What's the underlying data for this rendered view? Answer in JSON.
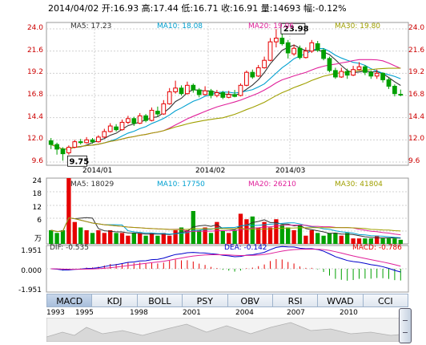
{
  "header": {
    "date": "2014/04/02",
    "open_label": "开:",
    "open": "16.93",
    "high_label": "高:",
    "high": "17.44",
    "low_label": "低:",
    "low": "16.71",
    "close_label": "收:",
    "close": "16.91",
    "volume_label": "量:",
    "volume": "14693",
    "change_label": "幅:",
    "change": "-0.12%"
  },
  "price_panel": {
    "ma5": "MA5: 17.23",
    "ma10": "MA10: 18.08",
    "ma20": "MA20: 19.06",
    "ma30": "MA30: 19.80",
    "max_label": "23.98",
    "min_label": "9.75",
    "y_ticks": [
      "24.0",
      "21.6",
      "19.2",
      "16.8",
      "14.4",
      "12.0",
      "9.6"
    ],
    "x_ticks": [
      "2014/01",
      "2014/02",
      "2014/03"
    ]
  },
  "volume_panel": {
    "ma5": "MA5: 18029",
    "ma10": "MA10: 17750",
    "ma20": "MA20: 26210",
    "ma30": "MA30: 41804",
    "y_ticks": [
      "24",
      "18",
      "12",
      "6"
    ],
    "unit": "万"
  },
  "macd_panel": {
    "dif": "DIF: -0.535",
    "dea": "DEA: -0.142",
    "macd": "MACD: -0.786",
    "y_ticks": [
      "1.951",
      "0.000",
      "-1.951"
    ]
  },
  "tabs": [
    "MACD",
    "KDJ",
    "BOLL",
    "PSY",
    "OBV",
    "RSI",
    "WVAD",
    "CCI"
  ],
  "active_tab": "MACD",
  "years": [
    "1993",
    "1995",
    "1998",
    "2001",
    "2004",
    "2007",
    "2010"
  ],
  "colors": {
    "up": "#e60000",
    "down": "#00a000",
    "ma5": "#333333",
    "ma10": "#00a0d0",
    "ma20": "#e0209a",
    "ma30": "#a0a000",
    "grid": "#d0d0d0",
    "tab_border": "#9eb3cc"
  },
  "icons": {
    "scroll_handle": "scrollbar-handle-icon"
  },
  "chart_data": [
    {
      "type": "candlestick",
      "title": "",
      "x": [
        "2014/01",
        "2014/02",
        "2014/03"
      ],
      "ylim": [
        9.6,
        24.0
      ],
      "series": [
        {
          "name": "MA5",
          "value": 17.23
        },
        {
          "name": "MA10",
          "value": 18.08
        },
        {
          "name": "MA20",
          "value": 19.06
        },
        {
          "name": "MA30",
          "value": 19.8
        }
      ],
      "candles": [
        [
          11.9,
          11.5,
          12.2,
          11.0
        ],
        [
          11.5,
          11.0,
          11.7,
          10.4
        ],
        [
          11.0,
          10.5,
          11.2,
          9.75
        ],
        [
          10.6,
          11.2,
          11.4,
          10.4
        ],
        [
          11.2,
          11.8,
          12.0,
          11.1
        ],
        [
          11.8,
          11.7,
          12.1,
          11.5
        ],
        [
          11.7,
          12.0,
          12.3,
          11.6
        ],
        [
          12.0,
          11.8,
          12.2,
          11.6
        ],
        [
          11.8,
          12.3,
          12.5,
          11.7
        ],
        [
          12.3,
          12.9,
          13.2,
          12.2
        ],
        [
          12.9,
          13.5,
          13.8,
          12.8
        ],
        [
          13.4,
          13.1,
          13.7,
          12.9
        ],
        [
          13.1,
          13.9,
          14.2,
          13.0
        ],
        [
          13.9,
          14.3,
          14.6,
          13.7
        ],
        [
          14.3,
          13.8,
          14.5,
          13.5
        ],
        [
          13.8,
          14.6,
          14.9,
          13.7
        ],
        [
          14.6,
          14.1,
          14.8,
          13.9
        ],
        [
          14.1,
          15.2,
          15.5,
          14.0
        ],
        [
          15.1,
          14.8,
          15.6,
          14.5
        ],
        [
          14.8,
          15.9,
          16.3,
          14.7
        ],
        [
          15.9,
          17.2,
          17.6,
          15.8
        ],
        [
          17.2,
          17.6,
          18.4,
          17.0
        ],
        [
          17.6,
          17.0,
          17.9,
          16.8
        ],
        [
          17.0,
          17.9,
          18.3,
          16.9
        ],
        [
          17.9,
          17.4,
          18.1,
          17.1
        ],
        [
          17.4,
          16.9,
          17.6,
          16.6
        ],
        [
          16.9,
          17.3,
          17.8,
          16.8
        ],
        [
          17.3,
          16.8,
          17.5,
          16.5
        ],
        [
          16.8,
          17.1,
          17.4,
          16.6
        ],
        [
          17.1,
          16.6,
          17.3,
          16.4
        ],
        [
          16.6,
          16.9,
          17.3,
          16.5
        ],
        [
          16.9,
          16.7,
          17.4,
          16.6
        ],
        [
          16.8,
          17.9,
          18.1,
          16.7
        ],
        [
          17.9,
          19.3,
          19.5,
          17.8
        ],
        [
          19.3,
          18.8,
          19.6,
          18.6
        ],
        [
          18.9,
          19.8,
          20.1,
          18.8
        ],
        [
          19.8,
          20.6,
          21.0,
          19.7
        ],
        [
          20.6,
          22.6,
          23.0,
          20.5
        ],
        [
          22.6,
          23.0,
          23.98,
          22.0
        ],
        [
          23.0,
          22.4,
          23.5,
          22.2
        ],
        [
          22.5,
          21.4,
          22.8,
          20.8
        ],
        [
          21.3,
          21.9,
          22.3,
          21.1
        ],
        [
          21.9,
          20.9,
          22.2,
          20.7
        ],
        [
          20.9,
          21.6,
          22.0,
          20.8
        ],
        [
          21.6,
          22.5,
          22.8,
          21.4
        ],
        [
          22.4,
          21.7,
          22.7,
          21.5
        ],
        [
          21.7,
          20.8,
          21.9,
          20.6
        ],
        [
          20.8,
          19.5,
          21.0,
          19.3
        ],
        [
          19.5,
          18.8,
          19.8,
          18.6
        ],
        [
          18.8,
          19.4,
          19.8,
          18.7
        ],
        [
          19.4,
          19.0,
          19.7,
          18.6
        ],
        [
          19.0,
          19.6,
          20.0,
          18.9
        ],
        [
          19.6,
          19.9,
          20.4,
          19.5
        ],
        [
          19.9,
          19.3,
          20.1,
          19.0
        ],
        [
          19.3,
          18.9,
          19.5,
          18.6
        ],
        [
          18.9,
          19.2,
          19.6,
          18.6
        ],
        [
          19.2,
          18.5,
          19.3,
          18.2
        ],
        [
          18.5,
          17.8,
          18.7,
          17.5
        ],
        [
          17.8,
          17.0,
          18.0,
          16.7
        ],
        [
          16.93,
          16.91,
          17.44,
          16.71
        ]
      ]
    },
    {
      "type": "bar",
      "title": "",
      "ylim": [
        0,
        24
      ],
      "series": [
        {
          "name": "MA5",
          "value": 18029
        },
        {
          "name": "MA10",
          "value": 17750
        },
        {
          "name": "MA20",
          "value": 26210
        },
        {
          "name": "MA30",
          "value": 41804
        }
      ],
      "values": [
        5,
        4,
        5,
        24,
        8,
        6,
        5,
        4,
        5,
        4,
        5,
        4,
        4,
        3,
        4,
        4,
        3,
        4,
        3,
        4,
        3,
        5,
        6,
        5,
        12,
        5,
        6,
        4,
        8,
        5,
        4,
        5,
        11,
        9,
        10,
        6,
        8,
        6,
        9,
        7,
        6,
        5,
        7,
        3,
        5,
        4,
        3,
        4,
        4,
        3,
        4,
        2,
        2,
        2,
        2,
        3,
        2,
        2,
        2,
        1.5
      ]
    },
    {
      "type": "line",
      "title": "",
      "ylim": [
        -1.951,
        1.951
      ],
      "series": [
        {
          "name": "DIF",
          "value": -0.535
        },
        {
          "name": "DEA",
          "value": -0.142
        },
        {
          "name": "MACD",
          "value": -0.786
        }
      ]
    }
  ]
}
